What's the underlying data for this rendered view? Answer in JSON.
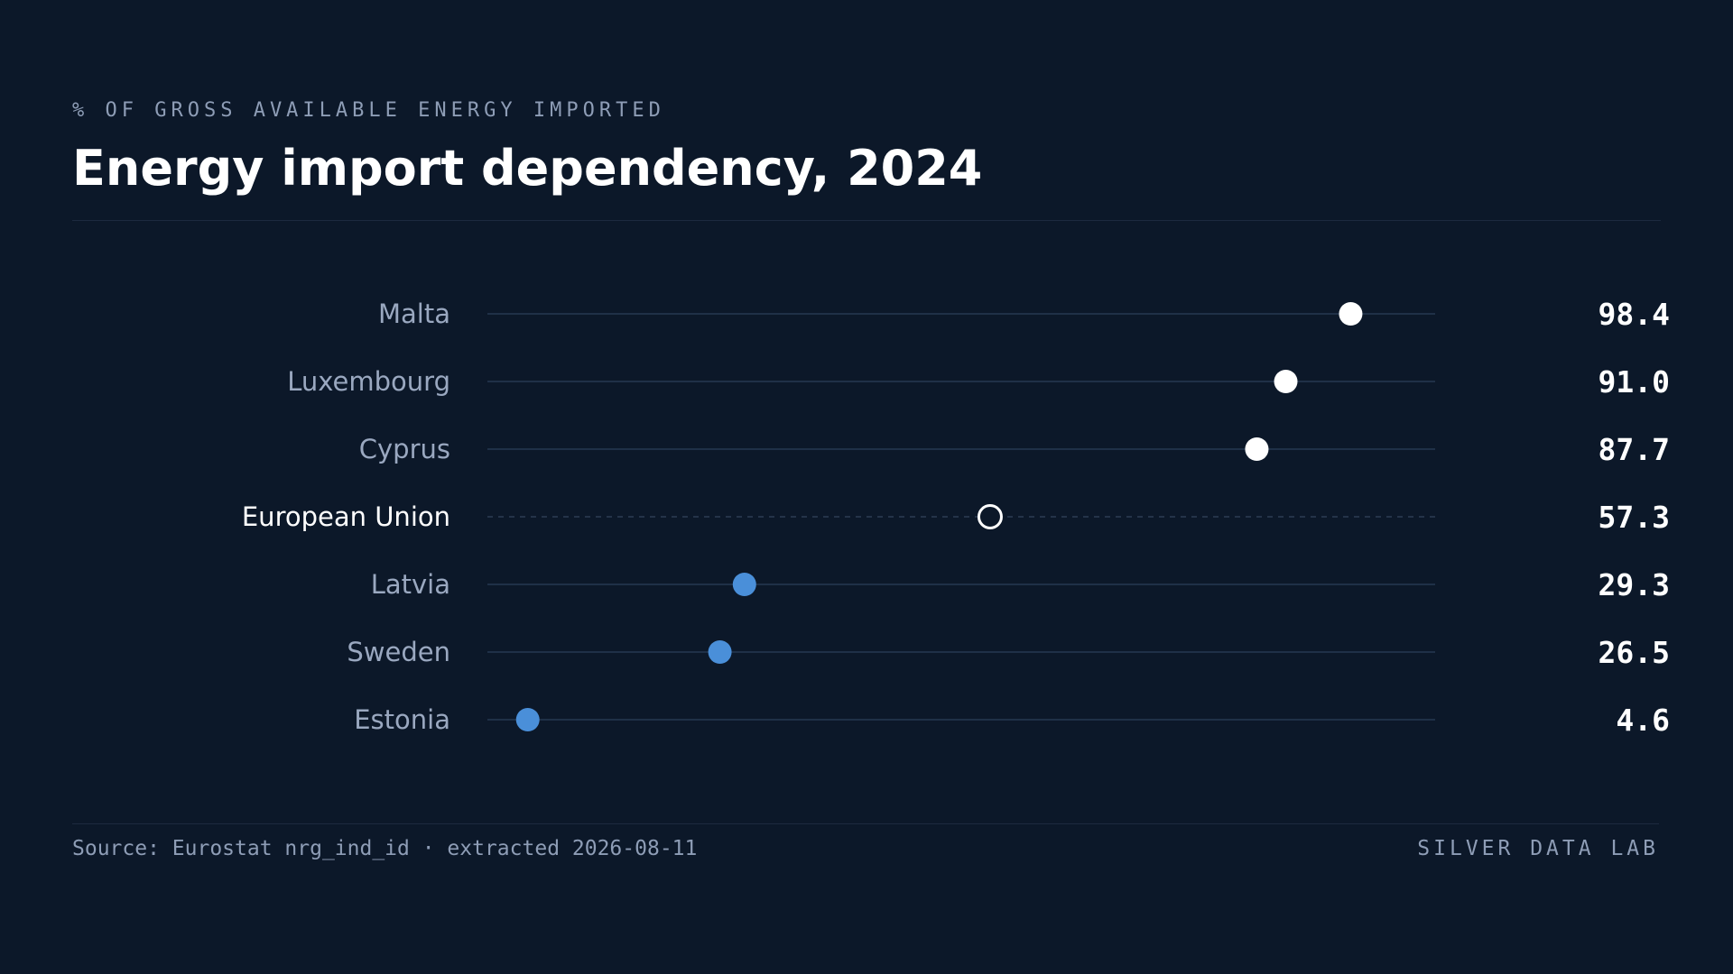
{
  "header": {
    "kicker": "% OF GROSS AVAILABLE ENERGY IMPORTED",
    "title": "Energy import dependency, 2024"
  },
  "footer": {
    "source": "Source: Eurostat nrg_ind_id · extracted 2026-08-11",
    "brand": "SILVER DATA LAB"
  },
  "colors": {
    "background": "#0c1829",
    "track": "#1f3047",
    "high": "#ffffff",
    "low": "#4a8fd9",
    "label": "#9aa8c0",
    "label_highlight": "#ffffff"
  },
  "chart_data": {
    "type": "scatter",
    "title": "Energy import dependency, 2024",
    "subtitle": "% OF GROSS AVAILABLE ENERGY IMPORTED",
    "xlim": [
      0,
      100
    ],
    "grid": false,
    "categories": [
      "Malta",
      "Luxembourg",
      "Cyprus",
      "European Union",
      "Latvia",
      "Sweden",
      "Estonia"
    ],
    "values": [
      98.4,
      91.0,
      87.7,
      57.3,
      29.3,
      26.5,
      4.6
    ],
    "value_labels": [
      "98.4",
      "91.0",
      "87.7",
      "57.3",
      "29.3",
      "26.5",
      "4.6"
    ],
    "reference": "European Union"
  }
}
